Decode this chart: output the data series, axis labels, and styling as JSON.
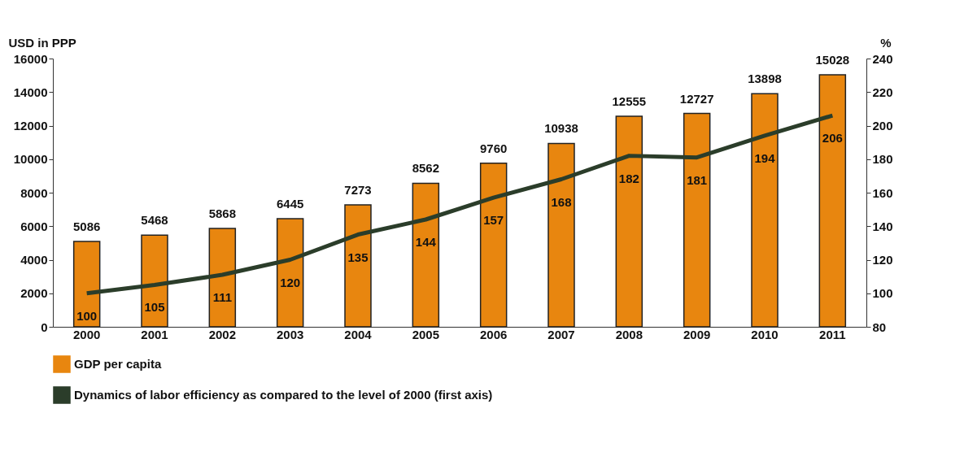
{
  "chart_data": {
    "type": "bar",
    "ylabel": "USD in PPP",
    "y2label": "%",
    "categories": [
      "2000",
      "2001",
      "2002",
      "2003",
      "2004",
      "2005",
      "2006",
      "2007",
      "2008",
      "2009",
      "2010",
      "2011"
    ],
    "series": [
      {
        "name": "GDP per capita",
        "color": "#e8860f",
        "values": [
          5086,
          5468,
          5868,
          6445,
          7273,
          8562,
          9760,
          10938,
          12555,
          12727,
          13898,
          15028
        ]
      },
      {
        "name": "Dynamics of labor efficiency as compared to the level of 2000 (first axis)",
        "type": "line",
        "axis": "y2",
        "color": "#2b3d2a",
        "values": [
          100,
          105,
          111,
          120,
          135,
          144,
          157,
          168,
          182,
          181,
          194,
          206
        ]
      }
    ],
    "ylim": [
      0,
      16000
    ],
    "yticks": [
      0,
      2000,
      4000,
      6000,
      8000,
      10000,
      12000,
      14000,
      16000
    ],
    "y2lim": [
      80,
      240
    ],
    "y2ticks": [
      80,
      100,
      120,
      140,
      160,
      180,
      200,
      220,
      240
    ],
    "data_labels": true,
    "legend": "bottom",
    "grid": false,
    "marker": "none",
    "line_style": "solid"
  }
}
